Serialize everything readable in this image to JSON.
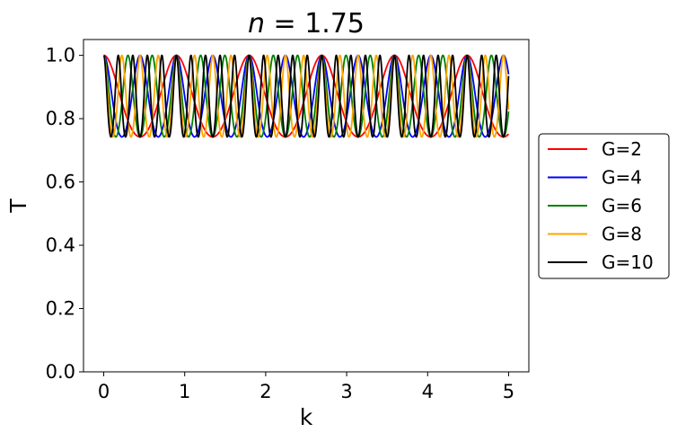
{
  "chart_data": {
    "type": "line",
    "title_var": "n",
    "title_eq": " = 1.75",
    "xlabel": "k",
    "ylabel": "T",
    "xlim": [
      -0.25,
      5.25
    ],
    "ylim": [
      0.0,
      1.05
    ],
    "xticks": [
      0,
      1,
      2,
      3,
      4,
      5
    ],
    "xtick_labels": [
      "0",
      "1",
      "2",
      "3",
      "4",
      "5"
    ],
    "yticks": [
      0.0,
      0.2,
      0.4,
      0.6,
      0.8,
      1.0
    ],
    "ytick_labels": [
      "0.0",
      "0.2",
      "0.4",
      "0.6",
      "0.8",
      "1.0"
    ],
    "grid": false,
    "legend_position": "right, outside plot",
    "k_range": [
      0,
      5
    ],
    "refractive_index": 1.75,
    "series": [
      {
        "name": "G=2",
        "color": "#ff0000",
        "G": 2
      },
      {
        "name": "G=4",
        "color": "#0000ff",
        "G": 4
      },
      {
        "name": "G=6",
        "color": "#008000",
        "G": 6
      },
      {
        "name": "G=8",
        "color": "#ffa500",
        "G": 8
      },
      {
        "name": "G=10",
        "color": "#000000",
        "G": 10
      }
    ]
  }
}
